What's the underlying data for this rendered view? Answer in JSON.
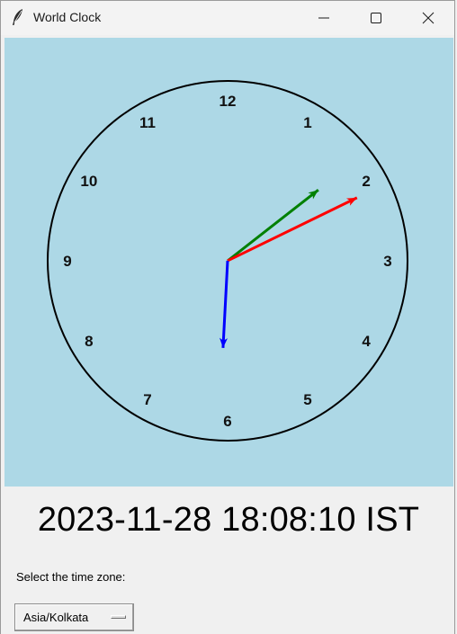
{
  "window": {
    "title": "World Clock",
    "app_icon": "feather-icon",
    "controls": [
      "minimize-icon",
      "maximize-icon",
      "close-icon"
    ]
  },
  "clock": {
    "background": "#add8e6",
    "numbers": [
      "12",
      "1",
      "2",
      "3",
      "4",
      "5",
      "6",
      "7",
      "8",
      "9",
      "10",
      "11"
    ],
    "time": {
      "hours": 18,
      "minutes": 8,
      "seconds": 10
    },
    "hands": {
      "hour_color": "#008000",
      "minute_color": "#ff0000",
      "second_color": "#0000ff"
    }
  },
  "time_display": "2023-11-28 18:08:10 IST",
  "timezone": {
    "label": "Select the time zone:",
    "selected": "Asia/Kolkata"
  }
}
